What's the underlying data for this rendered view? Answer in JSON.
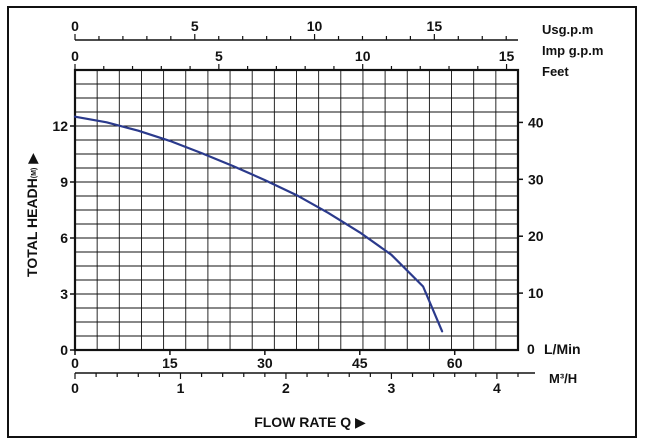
{
  "chart_data": {
    "type": "line",
    "series": [
      {
        "x": [
          0,
          5,
          10,
          15,
          20,
          25,
          30,
          35,
          40,
          45,
          50,
          55,
          58
        ],
        "y": [
          12.5,
          12.2,
          11.75,
          11.2,
          10.55,
          9.85,
          9.1,
          8.3,
          7.35,
          6.3,
          5.1,
          3.4,
          1.0
        ],
        "color": "#2b3a8c"
      }
    ],
    "x": {
      "range": [
        0,
        70
      ],
      "ticks": [
        0,
        15,
        30,
        45,
        60
      ],
      "unit_label": "L/Min",
      "title": "FLOW RATE Q ▶"
    },
    "y": {
      "range": [
        0,
        15
      ],
      "ticks": [
        0,
        3,
        6,
        9,
        12
      ],
      "title": "TOTAL HEADH",
      "title_sub": "(M)",
      "title_arrow": "▶"
    },
    "y_right": {
      "unit_label": "Feet",
      "ticks": [
        10,
        20,
        30,
        40
      ],
      "zero_label": "0"
    },
    "top_axis_usg": {
      "unit_label": "Usg.p.m",
      "ticks": [
        0,
        5,
        10,
        15
      ],
      "per_lmin": 0.26417
    },
    "top_axis_imp": {
      "unit_label": "Imp g.p.m",
      "ticks": [
        0,
        5,
        10,
        15
      ],
      "per_lmin": 0.21997
    },
    "bottom_axis_m3h": {
      "unit_label": "M³/H",
      "ticks": [
        0,
        1,
        2,
        3,
        4
      ],
      "per_lmin": 0.06
    },
    "grid": true,
    "grid_divisions": {
      "x": 20,
      "y": 20
    }
  }
}
